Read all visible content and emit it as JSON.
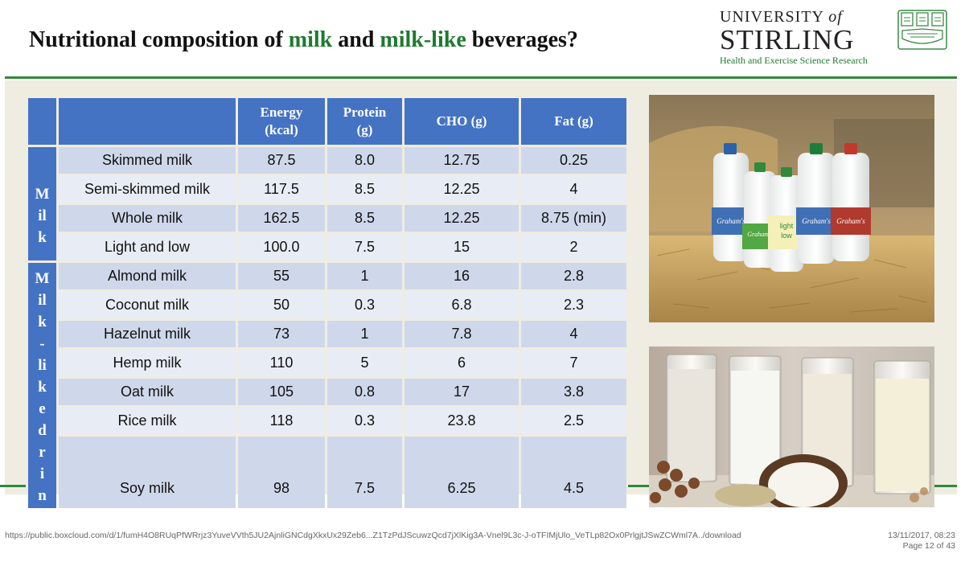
{
  "slide": {
    "title_pre": "Nutritional composition of ",
    "title_milk": "milk",
    "title_mid": " and ",
    "title_milklike": "milk-like",
    "title_post": " beverages?"
  },
  "logo": {
    "line1": "UNIVERSITY",
    "line1_of": "of",
    "line2": "STIRLING",
    "line3": "Health and Exercise Science Research"
  },
  "table": {
    "headers": [
      {
        "line1": "Energy",
        "line2": "(kcal)"
      },
      {
        "line1": "Protein",
        "line2": "(g)"
      },
      {
        "line1": "CHO (g)",
        "line2": ""
      },
      {
        "line1": "Fat (g)",
        "line2": ""
      }
    ],
    "group_milk": [
      "M",
      "il",
      "k"
    ],
    "group_milklike": [
      "M",
      "il",
      "k",
      "-",
      "li",
      "k",
      "e",
      "d",
      "r",
      "i",
      "n"
    ],
    "rows": [
      {
        "name": "Skimmed milk",
        "energy": "87.5",
        "protein": "8.0",
        "cho": "12.75",
        "fat": "0.25"
      },
      {
        "name": "Semi-skimmed milk",
        "energy": "117.5",
        "protein": "8.5",
        "cho": "12.25",
        "fat": "4"
      },
      {
        "name": "Whole milk",
        "energy": "162.5",
        "protein": "8.5",
        "cho": "12.25",
        "fat": "8.75 (min)"
      },
      {
        "name": "Light and low",
        "energy": "100.0",
        "protein": "7.5",
        "cho": "15",
        "fat": "2"
      },
      {
        "name": "Almond milk",
        "energy": "55",
        "protein": "1",
        "cho": "16",
        "fat": "2.8"
      },
      {
        "name": "Coconut milk",
        "energy": "50",
        "protein": "0.3",
        "cho": "6.8",
        "fat": "2.3"
      },
      {
        "name": "Hazelnut milk",
        "energy": "73",
        "protein": "1",
        "cho": "7.8",
        "fat": "4"
      },
      {
        "name": "Hemp milk",
        "energy": "110",
        "protein": "5",
        "cho": "6",
        "fat": "7"
      },
      {
        "name": "Oat milk",
        "energy": "105",
        "protein": "0.8",
        "cho": "17",
        "fat": "3.8"
      },
      {
        "name": "Rice milk",
        "energy": "118",
        "protein": "0.3",
        "cho": "23.8",
        "fat": "2.5"
      },
      {
        "name": "Soy milk",
        "energy": "98",
        "protein": "7.5",
        "cho": "6.25",
        "fat": "4.5"
      }
    ]
  },
  "photos": {
    "bottle_brand": "Graham's",
    "bottle_label_light": "light",
    "bottle_label_low": "low"
  },
  "footer": {
    "url": "https://public.boxcloud.com/d/1/fumH4O8RUqPfWRrjz3YuveVVth5JU2AjnliGNCdgXkxUx29Zeb6...Z1TzPdJScuwzQcd7jXlKig3A-Vnel9L3c-J-oTFIMjUlo_VeTLp82Ox0PrlgjtJSwZCWml7A../download",
    "datetime": "13/11/2017, 08:23",
    "page": "Page 12 of 43"
  },
  "colors": {
    "accent_green": "#1e7a2e",
    "header_blue": "#4473c4",
    "row_dark": "#cfd8ea",
    "row_light": "#e8edf5"
  }
}
